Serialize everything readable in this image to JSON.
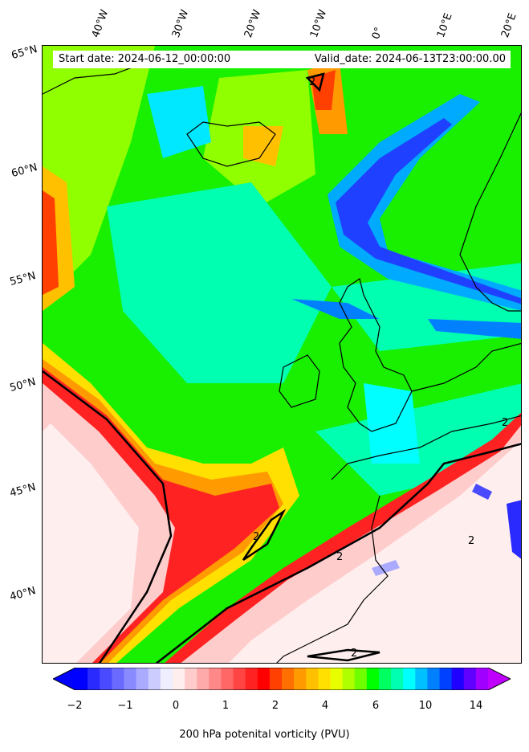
{
  "header": {
    "start_date": "Start date: 2024-06-12_00:00:00",
    "valid_date": "Valid_date: 2024-06-13T23:00:00.00"
  },
  "lon_labels": [
    "40°W",
    "30°W",
    "20°W",
    "10°W",
    "0°",
    "10°E",
    "20°E"
  ],
  "lat_labels": [
    "65°N",
    "60°N",
    "55°N",
    "50°N",
    "45°N",
    "40°N"
  ],
  "contour_label": "2",
  "colorbar": {
    "ticks": [
      "−2",
      "−1",
      "0",
      "1",
      "2",
      "4",
      "6",
      "10",
      "14"
    ],
    "label": "200 hPa potenital vorticity (PVU)",
    "colors": [
      "#0000ff",
      "#2a2aff",
      "#4a4aff",
      "#6a6aff",
      "#8a8aff",
      "#aaaaff",
      "#ccccff",
      "#eeeeff",
      "#ffeeee",
      "#ffcccc",
      "#ffaaaa",
      "#ff8888",
      "#ff6666",
      "#ff4444",
      "#ff2222",
      "#ff0000",
      "#ff4000",
      "#ff7000",
      "#ff9a00",
      "#ffc000",
      "#ffe000",
      "#e8ff00",
      "#b0ff00",
      "#70ff00",
      "#00ff00",
      "#00ff60",
      "#00ffb0",
      "#00ffff",
      "#00c0ff",
      "#0080ff",
      "#0040ff",
      "#2000ff",
      "#6000ff",
      "#a000ff"
    ],
    "left_arrow_color": "#0000ff",
    "right_arrow_color": "#c000ff"
  }
}
